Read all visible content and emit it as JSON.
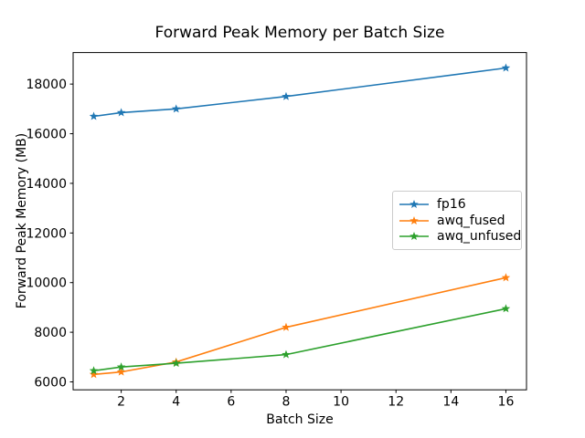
{
  "figure": {
    "background": "#ffffff",
    "axis_color": "#000000",
    "text_color": "#000000"
  },
  "chart_data": {
    "type": "line",
    "title": "Forward Peak Memory per Batch Size",
    "xlabel": "Batch Size",
    "ylabel": "Forward Peak Memory (MB)",
    "x": [
      1,
      2,
      4,
      8,
      16
    ],
    "series": [
      {
        "name": "fp16",
        "color": "#1f77b4",
        "marker": "star",
        "values": [
          16700,
          16850,
          17000,
          17500,
          18650
        ]
      },
      {
        "name": "awq_fused",
        "color": "#ff7f0e",
        "marker": "star",
        "values": [
          6300,
          6400,
          6800,
          8200,
          10200
        ]
      },
      {
        "name": "awq_unfused",
        "color": "#2ca02c",
        "marker": "star",
        "values": [
          6450,
          6600,
          6750,
          7100,
          8950
        ]
      }
    ],
    "xlim": [
      0.25,
      16.75
    ],
    "ylim": [
      5680,
      19270
    ],
    "xticks": [
      2,
      4,
      6,
      8,
      10,
      12,
      14,
      16
    ],
    "yticks": [
      6000,
      8000,
      10000,
      12000,
      14000,
      16000,
      18000
    ],
    "grid": false,
    "legend_position": "center right"
  }
}
